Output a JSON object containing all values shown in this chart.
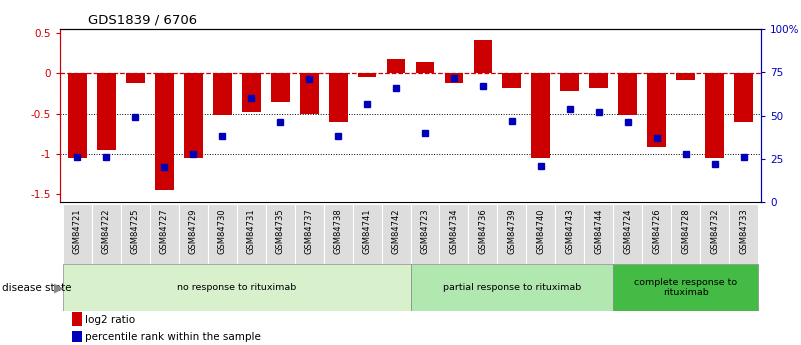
{
  "title": "GDS1839 / 6706",
  "samples": [
    "GSM84721",
    "GSM84722",
    "GSM84725",
    "GSM84727",
    "GSM84729",
    "GSM84730",
    "GSM84731",
    "GSM84735",
    "GSM84737",
    "GSM84738",
    "GSM84741",
    "GSM84742",
    "GSM84723",
    "GSM84734",
    "GSM84736",
    "GSM84739",
    "GSM84740",
    "GSM84743",
    "GSM84744",
    "GSM84724",
    "GSM84726",
    "GSM84728",
    "GSM84732",
    "GSM84733"
  ],
  "log2_ratio": [
    -1.05,
    -0.95,
    -0.12,
    -1.45,
    -1.05,
    -0.52,
    -0.48,
    -0.35,
    -0.5,
    -0.6,
    -0.05,
    0.18,
    0.14,
    -0.12,
    0.42,
    -0.18,
    -1.05,
    -0.22,
    -0.18,
    -0.52,
    -0.92,
    -0.08,
    -1.05,
    -0.6
  ],
  "percentile": [
    26,
    26,
    49,
    20,
    28,
    38,
    60,
    46,
    71,
    38,
    57,
    66,
    40,
    72,
    67,
    47,
    21,
    54,
    52,
    46,
    37,
    28,
    22,
    26
  ],
  "groups": [
    {
      "label": "no response to rituximab",
      "start": 0,
      "end": 11,
      "color": "#d8f0cc"
    },
    {
      "label": "partial response to rituximab",
      "start": 12,
      "end": 18,
      "color": "#b0e8b0"
    },
    {
      "label": "complete response to\nrituximab",
      "start": 19,
      "end": 23,
      "color": "#44bb44"
    }
  ],
  "ylim_left": [
    -1.6,
    0.55
  ],
  "ylim_right": [
    0,
    100
  ],
  "bar_color": "#cc0000",
  "dot_color": "#0000bb",
  "zero_line_color": "#cc0000",
  "grid_color": "#444444",
  "right_ticks": [
    0,
    25,
    50,
    75,
    100
  ],
  "right_tick_labels": [
    "0",
    "25",
    "50",
    "75",
    "100%"
  ],
  "left_ticks": [
    -1.5,
    -1.0,
    -0.5,
    0.0,
    0.5
  ],
  "background_color": "#ffffff"
}
